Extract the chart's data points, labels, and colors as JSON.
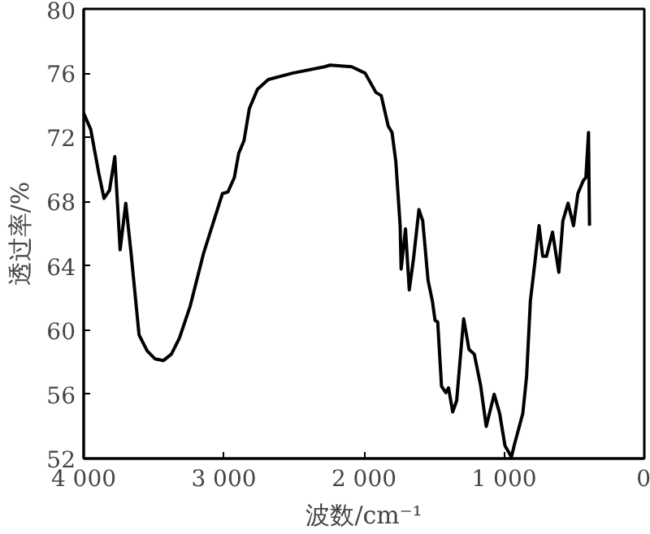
{
  "chart_data": {
    "type": "line",
    "xlabel": "波数/cm⁻¹",
    "ylabel": "透过率/%",
    "xlim": [
      4000,
      0
    ],
    "ylim": [
      52,
      80
    ],
    "xticks": [
      {
        "value": 4000,
        "label": "4 000"
      },
      {
        "value": 3000,
        "label": "3 000"
      },
      {
        "value": 2000,
        "label": "2 000"
      },
      {
        "value": 1000,
        "label": "1 000"
      },
      0
    ],
    "yticks": [
      52,
      56,
      60,
      64,
      68,
      72,
      76,
      80
    ],
    "grid": false,
    "marker": "none",
    "line_style": "solid",
    "series": [
      {
        "color": "#000000",
        "x": [
          4000,
          3950,
          3893,
          3855,
          3816,
          3778,
          3740,
          3700,
          3662,
          3605,
          3547,
          3490,
          3432,
          3374,
          3317,
          3240,
          3144,
          3010,
          2971,
          2925,
          2894,
          2856,
          2818,
          2760,
          2683,
          2510,
          2281,
          2242,
          2088,
          1992,
          1915,
          1877,
          1827,
          1800,
          1773,
          1742,
          1735,
          1704,
          1677,
          1646,
          1608,
          1581,
          1543,
          1512,
          1493,
          1474,
          1447,
          1416,
          1397,
          1367,
          1339,
          1289,
          1251,
          1213,
          1167,
          1128,
          1071,
          1032,
          994,
          948,
          929,
          867,
          840,
          813,
          782,
          751,
          725,
          698,
          655,
          610,
          581,
          544,
          505,
          474,
          436,
          417,
          398,
          391
        ],
        "values": [
          73.5,
          72.5,
          69.8,
          68.2,
          68.7,
          70.8,
          65.0,
          67.9,
          64.8,
          59.7,
          58.7,
          58.2,
          58.1,
          58.5,
          59.5,
          61.5,
          64.8,
          68.5,
          68.6,
          69.5,
          71.0,
          71.8,
          73.8,
          75.0,
          75.6,
          76.0,
          76.4,
          76.5,
          76.4,
          76.0,
          74.8,
          74.6,
          72.7,
          72.3,
          70.5,
          66.5,
          63.8,
          66.3,
          62.5,
          64.5,
          67.5,
          66.8,
          63.1,
          61.8,
          60.6,
          60.5,
          56.5,
          56.1,
          56.4,
          54.9,
          55.6,
          60.7,
          58.8,
          58.5,
          56.5,
          54.0,
          56.0,
          54.8,
          52.8,
          52.1,
          52.8,
          54.8,
          57.1,
          61.8,
          64.1,
          66.5,
          64.6,
          64.6,
          66.1,
          63.6,
          66.8,
          67.9,
          66.5,
          68.5,
          69.3,
          69.5,
          72.3,
          66.5
        ]
      }
    ]
  }
}
